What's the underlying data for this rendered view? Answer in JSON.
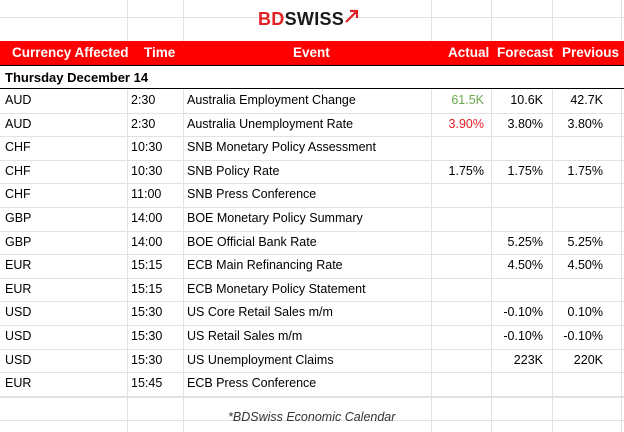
{
  "brand": {
    "part1": "BD",
    "part2": "SWISS"
  },
  "colors": {
    "header_bg": "#ff0000",
    "positive": "#6aa84f",
    "negative": "#e31e24"
  },
  "headers": {
    "currency": "Currency Affected",
    "time": "Time",
    "event": "Event",
    "actual": "Actual",
    "forecast": "Forecast",
    "previous": "Previous"
  },
  "date": "Thursday December 14",
  "rows": [
    {
      "currency": "AUD",
      "time": "2:30",
      "event": "Australia Employment Change",
      "actual": "61.5K",
      "forecast": "10.6K",
      "previous": "42.7K"
    },
    {
      "currency": "AUD",
      "time": "2:30",
      "event": "Australia Unemployment Rate",
      "actual": "3.90%",
      "forecast": "3.80%",
      "previous": "3.80%"
    },
    {
      "currency": "CHF",
      "time": "10:30",
      "event": "SNB Monetary Policy Assessment",
      "actual": "",
      "forecast": "",
      "previous": ""
    },
    {
      "currency": "CHF",
      "time": "10:30",
      "event": "SNB Policy Rate",
      "actual": "1.75%",
      "forecast": "1.75%",
      "previous": "1.75%"
    },
    {
      "currency": "CHF",
      "time": "11:00",
      "event": "SNB Press Conference",
      "actual": "",
      "forecast": "",
      "previous": ""
    },
    {
      "currency": "GBP",
      "time": "14:00",
      "event": "BOE Monetary Policy Summary",
      "actual": "",
      "forecast": "",
      "previous": ""
    },
    {
      "currency": "GBP",
      "time": "14:00",
      "event": "BOE Official Bank Rate",
      "actual": "",
      "forecast": "5.25%",
      "previous": "5.25%"
    },
    {
      "currency": "EUR",
      "time": "15:15",
      "event": "ECB Main Refinancing Rate",
      "actual": "",
      "forecast": "4.50%",
      "previous": "4.50%"
    },
    {
      "currency": "EUR",
      "time": "15:15",
      "event": "ECB Monetary Policy Statement",
      "actual": "",
      "forecast": "",
      "previous": ""
    },
    {
      "currency": "USD",
      "time": "15:30",
      "event": "US Core Retail Sales m/m",
      "actual": "",
      "forecast": "-0.10%",
      "previous": "0.10%"
    },
    {
      "currency": "USD",
      "time": "15:30",
      "event": "US Retail Sales m/m",
      "actual": "",
      "forecast": "-0.10%",
      "previous": "-0.10%"
    },
    {
      "currency": "USD",
      "time": "15:30",
      "event": "US Unemployment Claims",
      "actual": "",
      "forecast": "223K",
      "previous": "220K"
    },
    {
      "currency": "EUR",
      "time": "15:45",
      "event": "ECB Press Conference",
      "actual": "",
      "forecast": "",
      "previous": ""
    }
  ],
  "footer": "*BDSwiss Economic Calendar"
}
